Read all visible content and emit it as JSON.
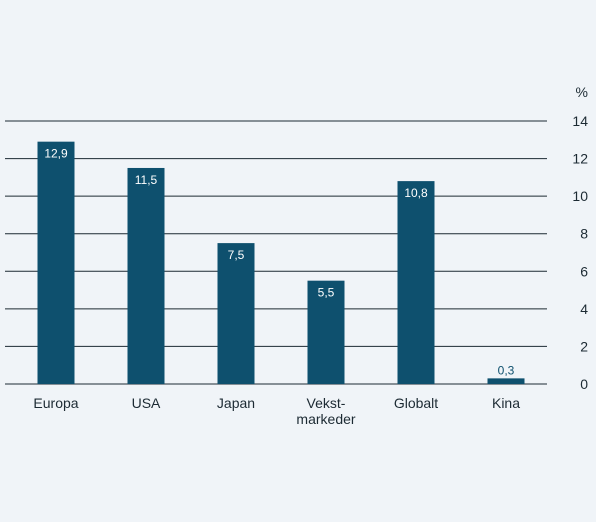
{
  "chart_data": {
    "type": "bar",
    "categories": [
      "Europa",
      "USA",
      "Japan",
      "Vekst-\nmarkeder",
      "Globalt",
      "Kina"
    ],
    "values": [
      12.9,
      11.5,
      7.5,
      5.5,
      10.8,
      0.3
    ],
    "value_labels": [
      "12,9",
      "11,5",
      "7,5",
      "5,5",
      "10,8",
      "0,3"
    ],
    "yticks": [
      0,
      2,
      4,
      6,
      8,
      10,
      12,
      14
    ],
    "ylim": [
      0,
      14
    ],
    "unit": "%",
    "grid": true,
    "bar_color": "#0e506e"
  }
}
